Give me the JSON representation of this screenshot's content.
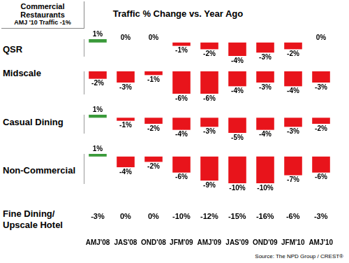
{
  "title": "Traffic % Change vs. Year Ago",
  "inset": [
    "Commercial Restaurants",
    "AMJ '10 Traffic -1%"
  ],
  "source": "Source: The NPD Group / CREST®",
  "chart_data": [
    {
      "type": "bar",
      "title": "QSR",
      "categories": [
        "AMJ'08",
        "JAS'08",
        "OND'08",
        "JFM'09",
        "AMJ'09",
        "JAS'09",
        "OND'09",
        "JFM'10",
        "AMJ'10"
      ],
      "values": [
        1,
        0,
        0,
        -1,
        -2,
        -4,
        -3,
        -2,
        0
      ],
      "value_labels": [
        "1%",
        "0%",
        "0%",
        "-1%",
        "-2%",
        "-4%",
        "-3%",
        "-2%",
        "0%"
      ],
      "colors": [
        "#3a9a3a",
        "#e8141b",
        "#e8141b",
        "#e8141b",
        "#e8141b",
        "#e8141b",
        "#e8141b",
        "#e8141b",
        "#e8141b"
      ],
      "ylim": [
        -4,
        1
      ],
      "grid": false,
      "data_labels": true,
      "tick_labels": false
    },
    {
      "type": "bar",
      "title": "Midscale",
      "categories": [
        "AMJ'08",
        "JAS'08",
        "OND'08",
        "JFM'09",
        "AMJ'09",
        "JAS'09",
        "OND'09",
        "JFM'10",
        "AMJ'10"
      ],
      "values": [
        -2,
        -3,
        -1,
        -6,
        -6,
        -4,
        -3,
        -4,
        -3
      ],
      "value_labels": [
        "-2%",
        "-3%",
        "-1%",
        "-6%",
        "-6%",
        "-4%",
        "-3%",
        "-4%",
        "-3%"
      ],
      "colors": [
        "#e8141b",
        "#e8141b",
        "#e8141b",
        "#e8141b",
        "#e8141b",
        "#e8141b",
        "#e8141b",
        "#e8141b",
        "#e8141b"
      ],
      "ylim": [
        -6,
        0
      ],
      "grid": false,
      "data_labels": true,
      "tick_labels": false
    },
    {
      "type": "bar",
      "title": "Casual Dining",
      "categories": [
        "AMJ'08",
        "JAS'08",
        "OND'08",
        "JFM'09",
        "AMJ'09",
        "JAS'09",
        "OND'09",
        "JFM'10",
        "AMJ'10"
      ],
      "values": [
        1,
        -1,
        -2,
        -4,
        -3,
        -5,
        -4,
        -3,
        -2
      ],
      "value_labels": [
        "1%",
        "-1%",
        "-2%",
        "-4%",
        "-3%",
        "-5%",
        "-4%",
        "-3%",
        "-2%"
      ],
      "colors": [
        "#3a9a3a",
        "#e8141b",
        "#e8141b",
        "#e8141b",
        "#e8141b",
        "#e8141b",
        "#e8141b",
        "#e8141b",
        "#e8141b"
      ],
      "ylim": [
        -5,
        1
      ],
      "grid": false,
      "data_labels": true,
      "tick_labels": false
    },
    {
      "type": "bar",
      "title": "Non-Commercial",
      "categories": [
        "AMJ'08",
        "JAS'08",
        "OND'08",
        "JFM'09",
        "AMJ'09",
        "JAS'09",
        "OND'09",
        "JFM'10",
        "AMJ'10"
      ],
      "values": [
        1,
        -4,
        -2,
        -6,
        -9,
        -10,
        -10,
        -7,
        -6
      ],
      "value_labels": [
        "1%",
        "-4%",
        "-2%",
        "-6%",
        "-9%",
        "-10%",
        "-10%",
        "-7%",
        "-6%"
      ],
      "colors": [
        "#3a9a3a",
        "#e8141b",
        "#e8141b",
        "#e8141b",
        "#e8141b",
        "#e8141b",
        "#e8141b",
        "#e8141b",
        "#e8141b"
      ],
      "ylim": [
        -10,
        1
      ],
      "grid": false,
      "data_labels": true,
      "tick_labels": false
    },
    {
      "type": "text",
      "title": "Fine Dining/Upscale Hotel",
      "categories": [
        "AMJ'08",
        "JAS'08",
        "OND'08",
        "JFM'09",
        "AMJ'09",
        "JAS'09",
        "OND'09",
        "JFM'10",
        "AMJ'10"
      ],
      "values": [
        -3,
        0,
        0,
        -10,
        -12,
        -15,
        -16,
        -6,
        -3
      ],
      "value_labels": [
        "-3%",
        "0%",
        "0%",
        "-10%",
        "-12%",
        "-15%",
        "-16%",
        "-6%",
        "-3%"
      ],
      "tick_labels": "x"
    }
  ]
}
